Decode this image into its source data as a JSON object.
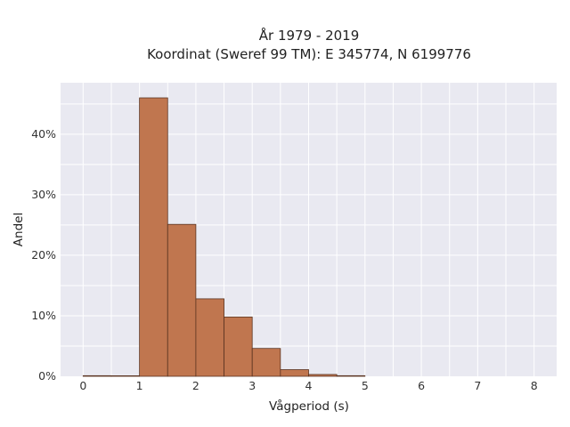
{
  "chart_data": {
    "type": "bar",
    "title_line1": "År 1979 - 2019",
    "title_line2": "Koordinat (Sweref 99 TM): E 345774, N 6199776",
    "xlabel": "Vågperiod (s)",
    "ylabel": "Andel",
    "bin_width": 0.5,
    "bin_edges_start": [
      0,
      0.5,
      1,
      1.5,
      2,
      2.5,
      3,
      3.5,
      4,
      4.5
    ],
    "values": [
      0.1,
      0.0,
      46.0,
      25.1,
      12.8,
      9.8,
      4.6,
      1.1,
      0.3,
      0.1
    ],
    "xlim": [
      -0.4,
      8.4
    ],
    "ylim": [
      0,
      48.5
    ],
    "xticks": [
      0,
      1,
      2,
      3,
      4,
      5,
      6,
      7,
      8
    ],
    "xtick_labels": [
      "0",
      "1",
      "2",
      "3",
      "4",
      "5",
      "6",
      "7",
      "8"
    ],
    "yticks": [
      0,
      10,
      20,
      30,
      40
    ],
    "ytick_labels": [
      "0%",
      "10%",
      "20%",
      "30%",
      "40%"
    ],
    "grid": true,
    "colors": {
      "bar": "#c0764f",
      "bar_edge": "#5a3320",
      "plot_bg": "#e9e9f1",
      "grid": "#ffffff"
    }
  }
}
